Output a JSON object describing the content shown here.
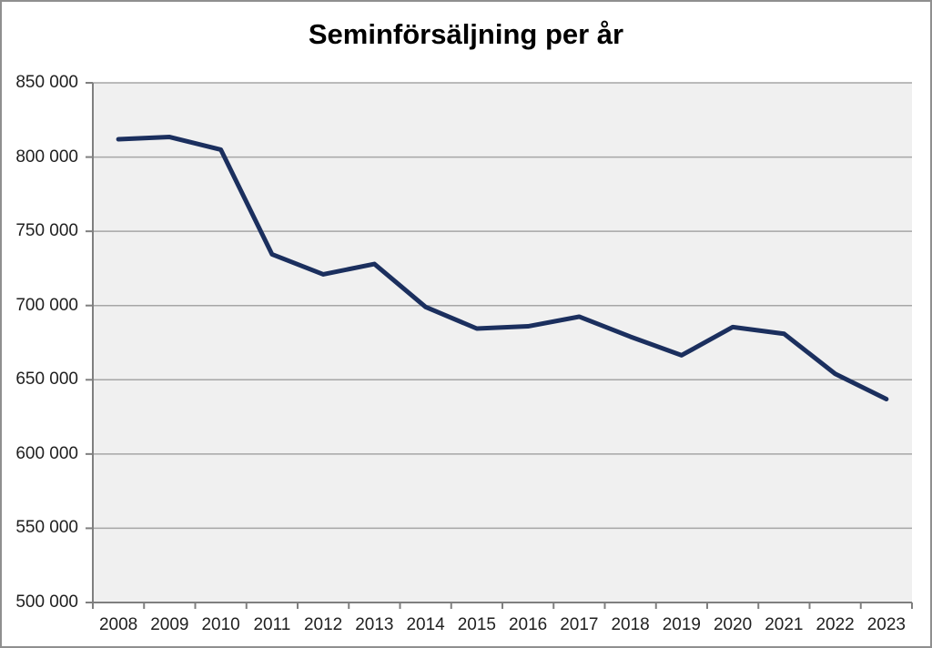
{
  "title": "Seminförsäljning per år",
  "colors": {
    "line": "#1b2f5e",
    "plot_bg": "#f0f0f0",
    "gridline": "#a6a6a6",
    "axis": "#7f7f7f",
    "frame": "#8f8f8f",
    "tick_label": "#1f1f1f",
    "title": "#000000"
  },
  "chart_data": {
    "type": "line",
    "title": "Seminförsäljning per år",
    "x": [
      "2008",
      "2009",
      "2010",
      "2011",
      "2012",
      "2013",
      "2014",
      "2015",
      "2016",
      "2017",
      "2018",
      "2019",
      "2020",
      "2021",
      "2022",
      "2023"
    ],
    "series": [
      {
        "name": "Seminförsäljning",
        "values": [
          812000,
          813500,
          805000,
          734500,
          721000,
          728000,
          699000,
          684500,
          686000,
          692500,
          679000,
          666500,
          685500,
          681000,
          654000,
          637000
        ]
      }
    ],
    "xlabel": "",
    "ylabel": "",
    "ylim": [
      500000,
      850000
    ],
    "ytick_step": 50000,
    "yticks": [
      {
        "value": 850000,
        "label": "850 000"
      },
      {
        "value": 800000,
        "label": "800 000"
      },
      {
        "value": 750000,
        "label": "750 000"
      },
      {
        "value": 700000,
        "label": "700 000"
      },
      {
        "value": 650000,
        "label": "650 000"
      },
      {
        "value": 600000,
        "label": "600 000"
      },
      {
        "value": 550000,
        "label": "550 000"
      },
      {
        "value": 500000,
        "label": "500 000"
      }
    ],
    "grid": true,
    "legend": "none"
  }
}
